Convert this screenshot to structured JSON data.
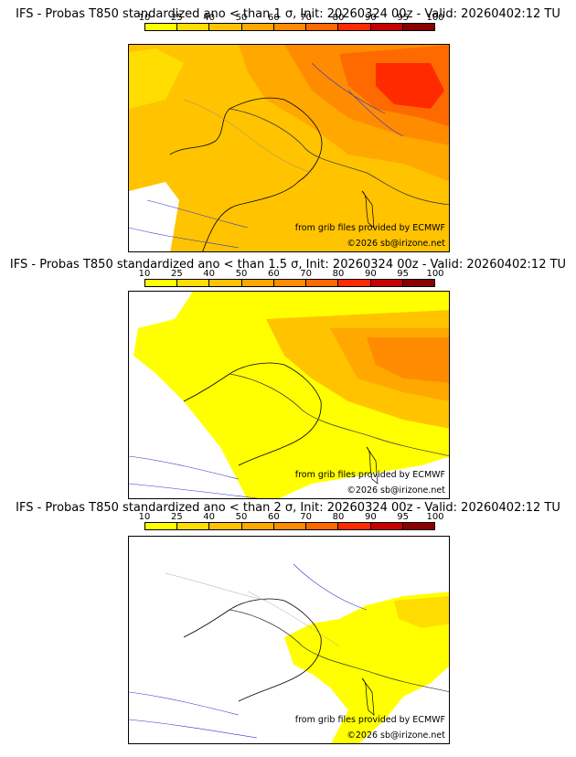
{
  "colorbar": {
    "ticks": [
      "10",
      "25",
      "40",
      "50",
      "60",
      "70",
      "80",
      "90",
      "95",
      "100"
    ],
    "colors": [
      "#ffff00",
      "#ffdd00",
      "#ffc300",
      "#ffa800",
      "#ff8c00",
      "#ff6a00",
      "#ff2a00",
      "#c80000",
      "#8b0000"
    ]
  },
  "panels": [
    {
      "title": "IFS - Probas T850  standardized ano < than 1 σ, Init: 20260324 00z - Valid: 20260402:12 TU",
      "credit_ecmwf": "from grib files provided by ECMWF",
      "credit_site": "©2026 sb@irizone.net",
      "level": "1 sigma"
    },
    {
      "title": "IFS - Probas T850  standardized ano < than 1.5 σ, Init: 20260324 00z - Valid: 20260402:12 TU",
      "credit_ecmwf": "from grib files provided by ECMWF",
      "credit_site": "©2026 sb@irizone.net",
      "level": "1.5 sigma"
    },
    {
      "title": "IFS - Probas T850  standardized ano < than 2 σ, Init: 20260324 00z - Valid: 20260402:12 TU",
      "credit_ecmwf": "from grib files provided by ECMWF",
      "credit_site": "©2026 sb@irizone.net",
      "level": "2 sigma"
    }
  ]
}
